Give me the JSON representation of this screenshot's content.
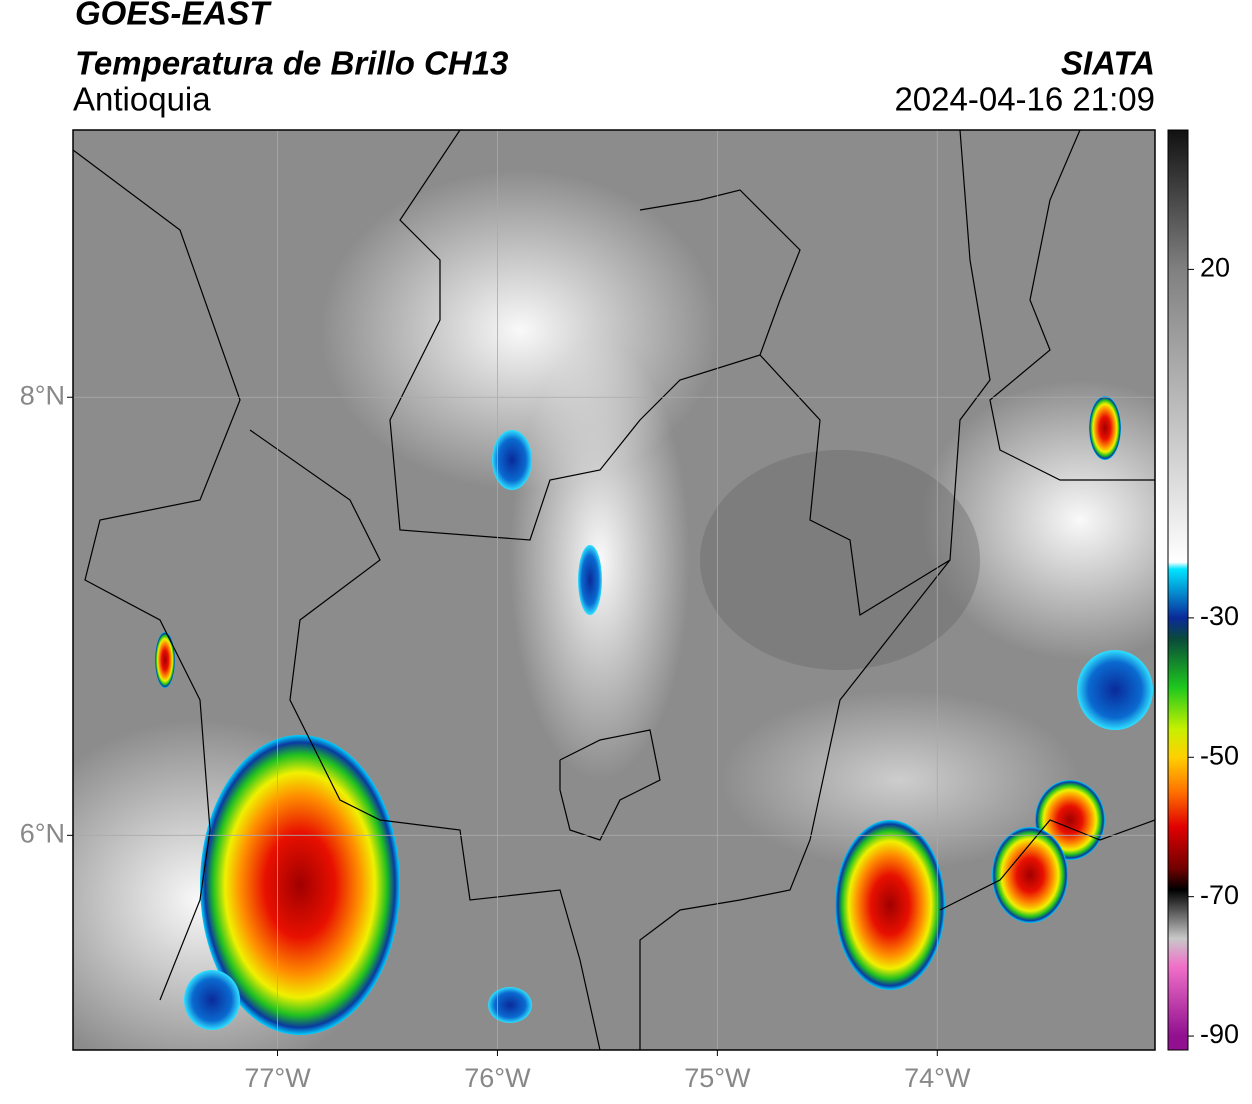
{
  "map": {
    "title": "GOES-EAST",
    "subtitle": "Temperatura de Brillo CH13",
    "region": "Antioquia",
    "source": "SIATA",
    "datetime": "2024-04-16 21:09",
    "xlim": [
      -77.93,
      -73.01
    ],
    "ylim": [
      5.02,
      9.22
    ],
    "xticks": [
      {
        "value": -77,
        "label": "77°W"
      },
      {
        "value": -76,
        "label": "76°W"
      },
      {
        "value": -75,
        "label": "75°W"
      },
      {
        "value": -74,
        "label": "74°W"
      }
    ],
    "yticks": [
      {
        "value": 6,
        "label": "6°N"
      },
      {
        "value": 8,
        "label": "8°N"
      }
    ],
    "colorbar": {
      "lim": [
        -92,
        40
      ],
      "ticks": [
        20,
        -30,
        -50,
        -70,
        -90
      ],
      "stops": [
        {
          "value": 40,
          "color": "#111111"
        },
        {
          "value": 20,
          "color": "#808080"
        },
        {
          "value": -22,
          "color": "#ffffff"
        },
        {
          "value": -23,
          "color": "#00e5ff"
        },
        {
          "value": -30,
          "color": "#0a2a9a"
        },
        {
          "value": -33,
          "color": "#0a4a3a"
        },
        {
          "value": -40,
          "color": "#1ec81e"
        },
        {
          "value": -46,
          "color": "#c8f000"
        },
        {
          "value": -50,
          "color": "#ffd000"
        },
        {
          "value": -55,
          "color": "#ff7000"
        },
        {
          "value": -60,
          "color": "#e00000"
        },
        {
          "value": -66,
          "color": "#700000"
        },
        {
          "value": -69,
          "color": "#000000"
        },
        {
          "value": -76,
          "color": "#c8c8c8"
        },
        {
          "value": -80,
          "color": "#f070c8"
        },
        {
          "value": -90,
          "color": "#901090"
        }
      ]
    }
  }
}
